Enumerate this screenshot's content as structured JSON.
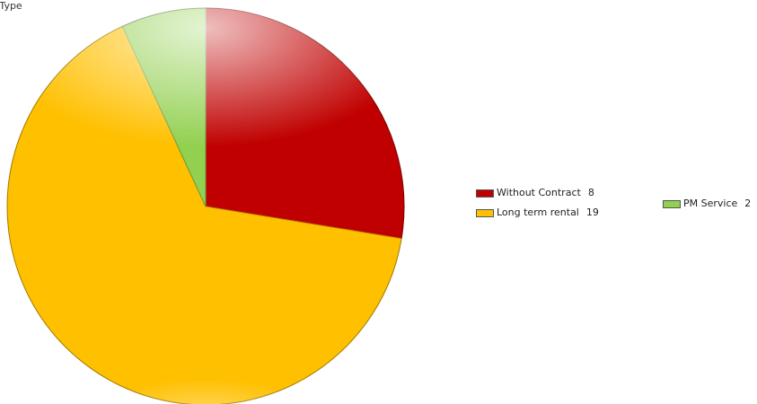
{
  "chart_data": {
    "type": "pie",
    "title": "tract Type",
    "slices": [
      {
        "label": "Without Contract",
        "value": 8,
        "color": "#c00000"
      },
      {
        "label": "Long term rental",
        "value": 19,
        "color": "#ffc000"
      },
      {
        "label": "PM Service",
        "value": 2,
        "color": "#92d050"
      }
    ],
    "legend_placement": "right"
  }
}
